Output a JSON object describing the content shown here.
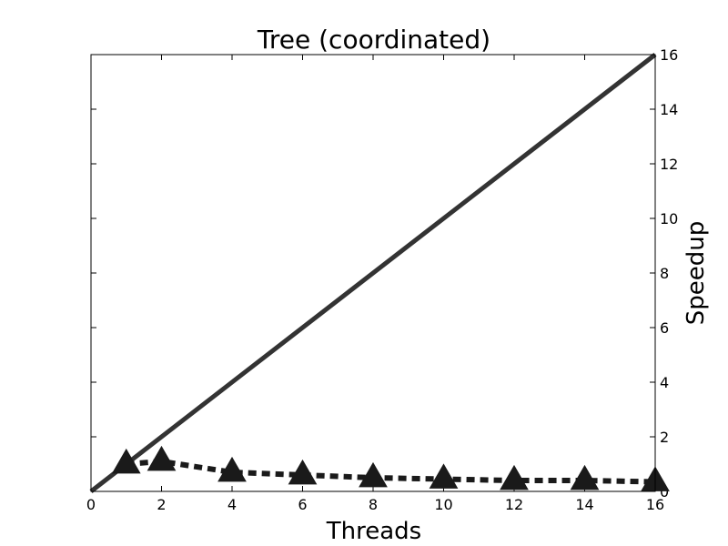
{
  "chart_data": {
    "type": "line",
    "title": "Tree (coordinated)",
    "xlabel": "Threads",
    "ylabel": "Speedup",
    "xlim": [
      0,
      16
    ],
    "ylim": [
      0,
      16
    ],
    "x_ticks": [
      0,
      2,
      4,
      6,
      8,
      10,
      12,
      14,
      16
    ],
    "y_ticks": [
      0,
      2,
      4,
      6,
      8,
      10,
      12,
      14,
      16
    ],
    "y_axis_side": "right",
    "grid": false,
    "legend": "none",
    "series": [
      {
        "style": "solid",
        "color": "#333333",
        "marker": "none",
        "x": [
          0,
          16
        ],
        "y": [
          0,
          16
        ]
      },
      {
        "style": "dashed",
        "color": "#1a1a1a",
        "marker": "triangle",
        "x": [
          1,
          2,
          4,
          6,
          8,
          10,
          12,
          14,
          16
        ],
        "y": [
          1.0,
          1.1,
          0.7,
          0.6,
          0.5,
          0.45,
          0.4,
          0.4,
          0.35
        ]
      }
    ]
  }
}
